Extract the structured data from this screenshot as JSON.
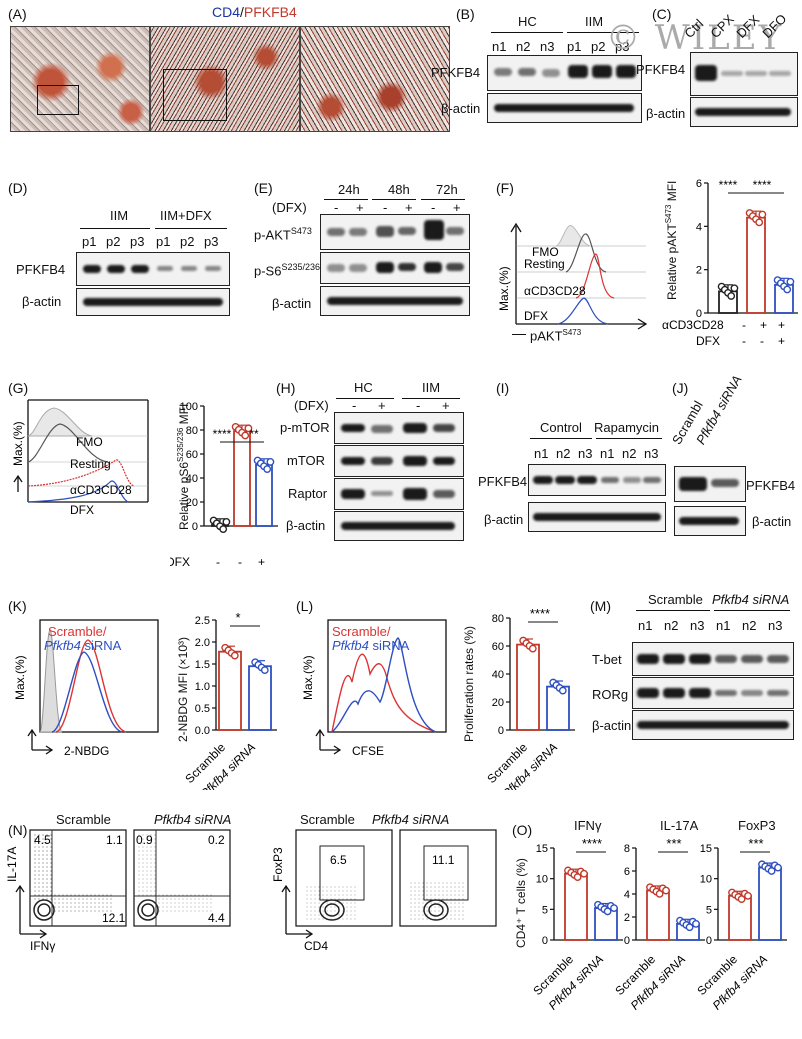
{
  "watermark": "© WILEY",
  "A": {
    "label": "(A)",
    "title_cd4": "CD4",
    "title_sep": "/",
    "title_pfkfb4": "PFKFB4"
  },
  "B": {
    "label": "(B)",
    "groups": [
      "HC",
      "IIM"
    ],
    "lanes": [
      "n1",
      "n2",
      "n3",
      "p1",
      "p2",
      "p3"
    ],
    "rows": [
      "PFKFB4",
      "β-actin"
    ]
  },
  "C": {
    "label": "(C)",
    "lanes": [
      "Ctrl",
      "CPX",
      "DFX",
      "DFO"
    ],
    "rows": [
      "PFKFB4",
      "β-actin"
    ]
  },
  "D": {
    "label": "(D)",
    "groups": [
      "IIM",
      "IIM+DFX"
    ],
    "lanes": [
      "p1",
      "p2",
      "p3",
      "p1",
      "p2",
      "p3"
    ],
    "rows": [
      "PFKFB4",
      "β-actin"
    ]
  },
  "E": {
    "label": "(E)",
    "times": [
      "24h",
      "48h",
      "72h"
    ],
    "dfx_label": "(DFX)",
    "signs": [
      "-",
      "+",
      "-",
      "+",
      "-",
      "+"
    ],
    "rows": [
      "β-actin"
    ],
    "pakt": "p-AKT",
    "pakt_sup": "S473",
    "ps6": "p-S6",
    "ps6_sup": "S235/236"
  },
  "F": {
    "label": "(F)",
    "hist_legend": [
      "FMO",
      "Resting",
      "αCD3CD28",
      "DFX"
    ],
    "ylabel": "Max.(%)",
    "xlabel": "pAKT",
    "xlabel_sup": "S473",
    "bar_ylabel": "Relative pAKT",
    "bar_ylabel_sup": "S473",
    "bar_ylabel_tail": " MFI",
    "yticks": [
      "0",
      "2",
      "4",
      "6"
    ],
    "row1": "αCD3CD28",
    "row2": "DFX",
    "row1_signs": [
      "-",
      "+",
      "+"
    ],
    "row2_signs": [
      "-",
      "-",
      "+"
    ],
    "sig": [
      "****",
      "****"
    ],
    "chart_data": {
      "type": "bar",
      "values": [
        1.0,
        4.4,
        1.3
      ],
      "ylim": [
        0,
        6
      ],
      "colors": [
        "#222222",
        "#c0392b",
        "#2e4fc0"
      ]
    }
  },
  "G": {
    "label": "(G)",
    "hist_legend": [
      "FMO",
      "Resting",
      "αCD3CD28",
      "DFX"
    ],
    "ylabel": "Max.(%)",
    "bar_ylabel": "Relative pS6",
    "bar_ylabel_sup": "S235/236",
    "bar_ylabel_tail": " MFI",
    "yticks": [
      "0",
      "20",
      "40",
      "60",
      "80",
      "100"
    ],
    "row": "DFX",
    "signs": [
      "-",
      "-",
      "+"
    ],
    "sig": [
      "****",
      "**"
    ],
    "chart_data": {
      "type": "bar",
      "values": [
        1,
        79,
        51
      ],
      "ylim": [
        0,
        100
      ],
      "colors": [
        "#222222",
        "#c0392b",
        "#2e4fc0"
      ]
    }
  },
  "H": {
    "label": "(H)",
    "groups": [
      "HC",
      "IIM"
    ],
    "dfx_label": "(DFX)",
    "signs": [
      "-",
      "+",
      "-",
      "+"
    ],
    "rows": [
      "p-mTOR",
      "mTOR",
      "Raptor",
      "β-actin"
    ]
  },
  "I": {
    "label": "(I)",
    "groups": [
      "Control",
      "Rapamycin"
    ],
    "lanes": [
      "n1",
      "n2",
      "n3",
      "n1",
      "n2",
      "n3"
    ],
    "rows": [
      "PFKFB4",
      "β-actin"
    ]
  },
  "J": {
    "label": "(J)",
    "lanes": [
      "Scrambl",
      "Pfkfb4 siRNA"
    ],
    "rows": [
      "PFKFB4",
      "β-actin"
    ]
  },
  "K": {
    "label": "(K)",
    "legend1": "Scramble/",
    "legend2": "Pfkfb4",
    "legend2_tail": " siRNA",
    "ylabel": "Max.(%)",
    "xlabel": "2-NBDG",
    "bar_ylabel": "2-NBDG MFI (×10³)",
    "yticks": [
      "0.0",
      "0.5",
      "1.0",
      "1.5",
      "2.0",
      "2.5"
    ],
    "xcats": [
      "Scramble",
      "Pfkfb4 siRNA"
    ],
    "sig": "*",
    "chart_data": {
      "type": "bar",
      "values": [
        1.78,
        1.45
      ],
      "ylim": [
        0,
        2.5
      ],
      "colors": [
        "#c0392b",
        "#2e4fc0"
      ]
    }
  },
  "L": {
    "label": "(L)",
    "legend1": "Scramble/",
    "legend2": "Pfkfb4",
    "legend2_tail": " siRNA",
    "ylabel": "Max.(%)",
    "xlabel": "CFSE",
    "bar_ylabel": "Proliferation rates (%)",
    "yticks": [
      "0",
      "20",
      "40",
      "60",
      "80"
    ],
    "xcats": [
      "Scramble",
      "Pfkfb4 siRNA"
    ],
    "sig": "****",
    "chart_data": {
      "type": "bar",
      "values": [
        61,
        31
      ],
      "ylim": [
        0,
        80
      ],
      "colors": [
        "#c0392b",
        "#2e4fc0"
      ]
    }
  },
  "M": {
    "label": "(M)",
    "groups": [
      "Scramble",
      "Pfkfb4 siRNA"
    ],
    "lanes": [
      "n1",
      "n2",
      "n3",
      "n1",
      "n2",
      "n3"
    ],
    "rows": [
      "T-bet",
      "RORg",
      "β-actin"
    ]
  },
  "N": {
    "label": "(N)",
    "titles": [
      "Scramble",
      "Pfkfb4 siRNA",
      "Scramble",
      "Pfkfb4 siRNA"
    ],
    "y1": "IL-17A",
    "x1": "IFNγ",
    "y2": "FoxP3",
    "x2": "CD4",
    "q1": [
      "4.5",
      "1.1",
      "12.1"
    ],
    "q2": [
      "0.9",
      "0.2",
      "4.4"
    ],
    "g1": "6.5",
    "g2": "11.1"
  },
  "O": {
    "label": "(O)",
    "titles": [
      "IFNγ",
      "IL-17A",
      "FoxP3"
    ],
    "ylabel": "CD4⁺ T cells (%)",
    "xcats": [
      "Scramble",
      "Pfkfb4 siRNA"
    ],
    "yticks1": [
      "0",
      "5",
      "10",
      "15"
    ],
    "yticks2": [
      "0",
      "2",
      "4",
      "6",
      "8"
    ],
    "yticks3": [
      "0",
      "5",
      "10",
      "15"
    ],
    "sig": [
      "****",
      "***",
      "***"
    ],
    "chart_data": [
      {
        "type": "bar",
        "values": [
          10.8,
          5.2
        ],
        "ylim": [
          0,
          15
        ]
      },
      {
        "type": "bar",
        "values": [
          4.3,
          1.4
        ],
        "ylim": [
          0,
          8
        ]
      },
      {
        "type": "bar",
        "values": [
          7.2,
          11.8
        ],
        "ylim": [
          0,
          15
        ]
      }
    ]
  }
}
